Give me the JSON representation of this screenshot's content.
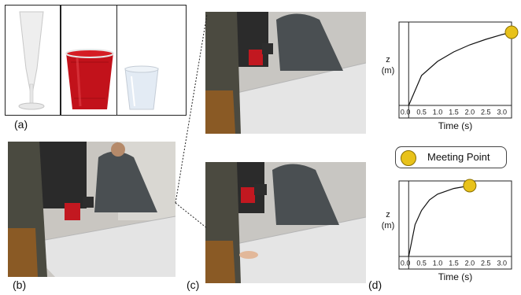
{
  "labels": {
    "a": "(a)",
    "b": "(b)",
    "c": "(c)",
    "d": "(d)"
  },
  "legend": {
    "label": "Meeting Point",
    "marker_color": "#e8c21a"
  },
  "charts": {
    "top": {
      "ylabel_line1": "z",
      "ylabel_line2": "(m)",
      "xlabel": "Time (s)",
      "ticks": [
        "0.0",
        "0.5",
        "1.0",
        "1.5",
        "2.0",
        "2.5",
        "3.0"
      ]
    },
    "bottom": {
      "ylabel_line1": "z",
      "ylabel_line2": "(m)",
      "xlabel": "Time (s)",
      "ticks": [
        "0.0",
        "0.5",
        "1.0",
        "1.5",
        "2.0",
        "2.5",
        "3.0"
      ]
    }
  },
  "chart_data": [
    {
      "type": "line",
      "title": "",
      "xlabel": "Time (s)",
      "ylabel": "z (m)",
      "xlim": [
        -0.2,
        3.3
      ],
      "series": [
        {
          "x": [
            0.1,
            0.5,
            1.0,
            1.5,
            2.0,
            2.5,
            3.0,
            3.3
          ],
          "y": [
            0.0,
            0.38,
            0.56,
            0.68,
            0.77,
            0.84,
            0.9,
            0.93
          ]
        }
      ],
      "annotations": [
        {
          "label": "Meeting Point",
          "x": 3.3,
          "y": 0.93
        }
      ]
    },
    {
      "type": "line",
      "title": "",
      "xlabel": "Time (s)",
      "ylabel": "z (m)",
      "xlim": [
        -0.2,
        3.3
      ],
      "series": [
        {
          "x": [
            0.1,
            0.3,
            0.5,
            0.75,
            1.0,
            1.5,
            2.0
          ],
          "y": [
            0.0,
            0.45,
            0.65,
            0.8,
            0.88,
            0.96,
            1.0
          ]
        }
      ],
      "annotations": [
        {
          "label": "Meeting Point",
          "x": 2.0,
          "y": 1.0
        }
      ]
    }
  ]
}
